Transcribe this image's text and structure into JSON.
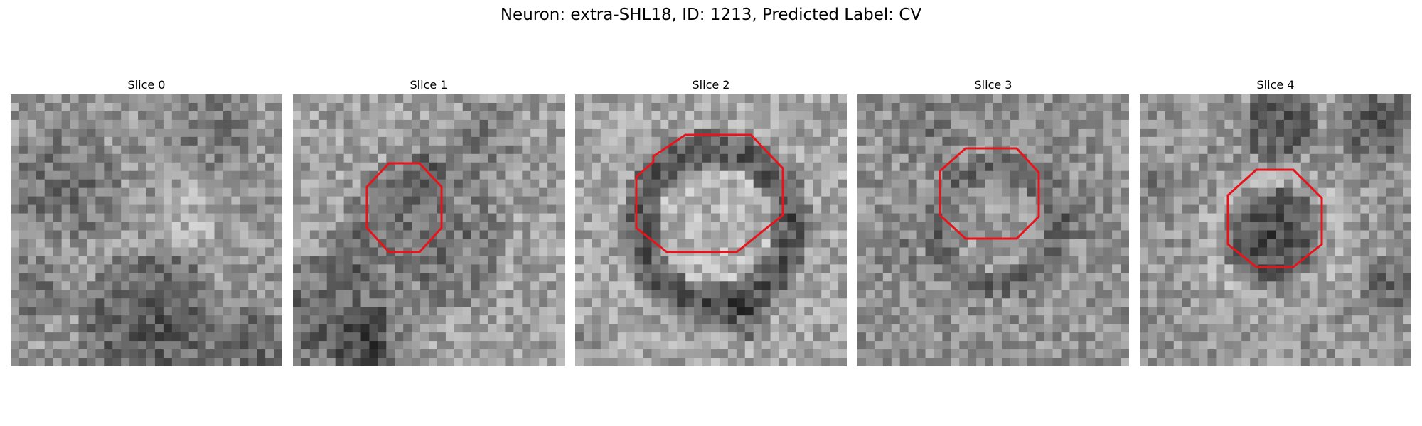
{
  "figure": {
    "title": "Neuron: extra-SHL18, ID: 1213, Predicted Label: CV"
  },
  "panels": [
    {
      "title": "Slice 0",
      "roi_visible": false
    },
    {
      "title": "Slice 1",
      "roi_visible": true
    },
    {
      "title": "Slice 2",
      "roi_visible": true
    },
    {
      "title": "Slice 3",
      "roi_visible": true
    },
    {
      "title": "Slice 4",
      "roi_visible": true
    }
  ],
  "colors": {
    "roi_outline": "#e8141b",
    "background": "#ffffff"
  }
}
